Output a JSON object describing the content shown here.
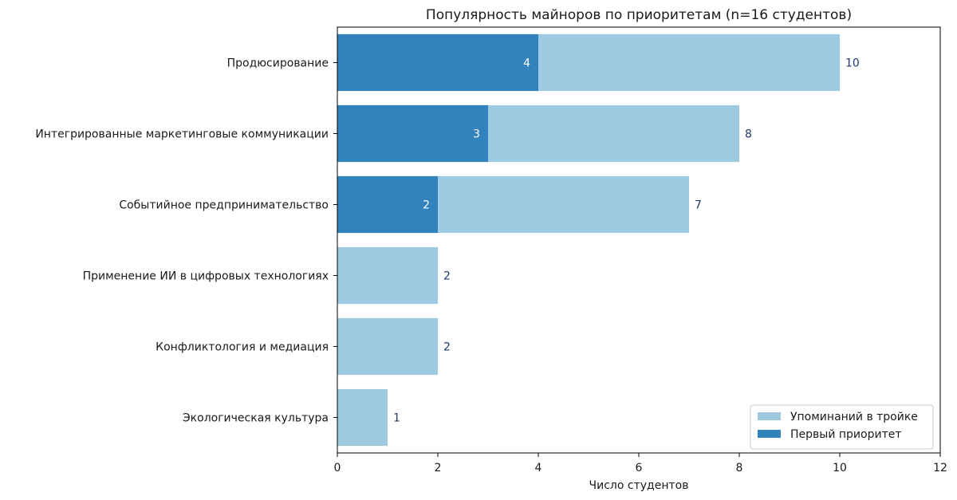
{
  "chart_data": {
    "type": "bar",
    "orientation": "horizontal",
    "stacked": "overlay",
    "title": "Популярность майноров по приоритетам (n=16 студентов)",
    "xlabel": "Число студентов",
    "ylabel": "",
    "xlim": [
      0,
      12
    ],
    "xticks": [
      0,
      2,
      4,
      6,
      8,
      10,
      12
    ],
    "categories": [
      "Продюсирование",
      "Интегрированные маркетинговые коммуникации",
      "Событийное предпринимательство",
      "Применение ИИ в цифровых технологиях",
      "Конфликтология и медиация",
      "Экологическая культура"
    ],
    "series": [
      {
        "name": "Упоминаний в тройке",
        "color": "#9ecae1",
        "values": [
          10,
          8,
          7,
          2,
          2,
          1
        ]
      },
      {
        "name": "Первый приоритет",
        "color": "#3182bd",
        "values": [
          4,
          3,
          2,
          0,
          0,
          0
        ]
      }
    ],
    "legend_position": "lower-right",
    "grid": false
  }
}
